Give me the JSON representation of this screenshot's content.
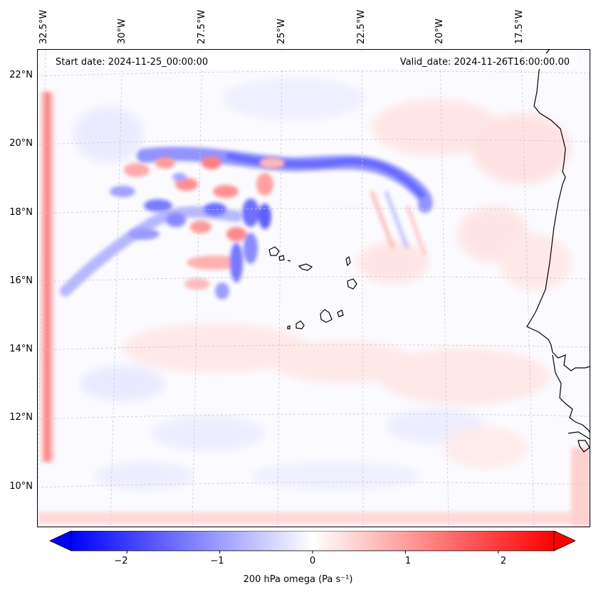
{
  "map": {
    "header": {
      "start": "Start date: 2024-11-25_00:00:00",
      "valid": "Valid_date: 2024-11-26T16:00:00.00"
    },
    "lat_labels": [
      "22°N",
      "20°N",
      "18°N",
      "16°N",
      "14°N",
      "12°N",
      "10°N"
    ],
    "lon_labels": [
      "32.5°W",
      "30°W",
      "27.5°W",
      "25°W",
      "22.5°W",
      "20°W",
      "17.5°W"
    ],
    "field_name": "200 hPa omega",
    "units": "Pa s⁻¹"
  },
  "colorbar": {
    "ticks": [
      "−2",
      "−1",
      "0",
      "1",
      "2"
    ],
    "tick_values": [
      -2,
      -1,
      0,
      1,
      2
    ],
    "range": [
      -2.6,
      2.6
    ],
    "label": "200 hPa omega (Pa s⁻¹)",
    "colors": {
      "negative": "#0000ff",
      "zero": "#ffffff",
      "positive": "#ff0000"
    }
  }
}
